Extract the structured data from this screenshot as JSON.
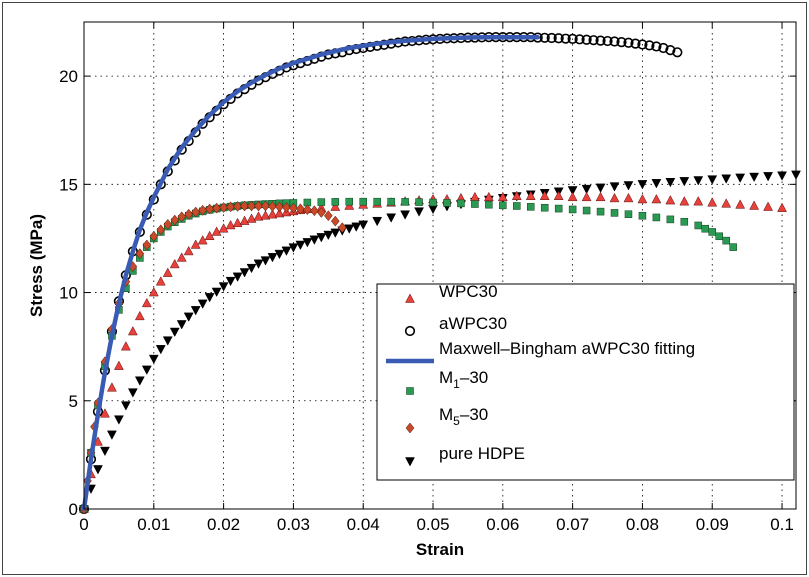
{
  "chart_data": {
    "type": "scatter",
    "xlabel": "Strain",
    "ylabel": "Stress (MPa)",
    "xlim": [
      0,
      0.102
    ],
    "ylim": [
      0,
      22.5
    ],
    "xticks": [
      0,
      0.01,
      0.02,
      0.03,
      0.04,
      0.05,
      0.06,
      0.07,
      0.08,
      0.09,
      0.1
    ],
    "xtick_labels": [
      "0",
      "0.01",
      "0.02",
      "0.03",
      "0.04",
      "0.05",
      "0.06",
      "0.07",
      "0.08",
      "0.09",
      "0.1"
    ],
    "yticks": [
      0,
      5,
      10,
      15,
      20
    ],
    "ytick_labels": [
      "0",
      "5",
      "10",
      "15",
      "20"
    ],
    "grid": true,
    "legend_position": "lower-right",
    "series": [
      {
        "name": "WPC30",
        "legend_main": "WPC30",
        "legend_sub": "",
        "legend_tail": "",
        "marker": "triangle-up",
        "color": "#e8403a",
        "kind": "markers",
        "x": [
          0,
          0.001,
          0.002,
          0.003,
          0.004,
          0.005,
          0.006,
          0.007,
          0.008,
          0.009,
          0.01,
          0.011,
          0.012,
          0.013,
          0.014,
          0.015,
          0.016,
          0.017,
          0.018,
          0.019,
          0.02,
          0.021,
          0.022,
          0.023,
          0.024,
          0.025,
          0.026,
          0.027,
          0.028,
          0.029,
          0.03,
          0.031,
          0.032,
          0.034,
          0.036,
          0.038,
          0.04,
          0.042,
          0.044,
          0.046,
          0.048,
          0.05,
          0.052,
          0.054,
          0.056,
          0.058,
          0.06,
          0.062,
          0.064,
          0.066,
          0.068,
          0.07,
          0.072,
          0.074,
          0.076,
          0.078,
          0.08,
          0.082,
          0.084,
          0.086,
          0.088,
          0.09,
          0.092,
          0.094,
          0.096,
          0.098,
          0.1
        ],
        "y": [
          0,
          1.6,
          3.1,
          4.4,
          5.6,
          6.6,
          7.5,
          8.2,
          8.9,
          9.5,
          10.0,
          10.5,
          10.9,
          11.3,
          11.6,
          11.9,
          12.2,
          12.4,
          12.6,
          12.8,
          12.95,
          13.1,
          13.2,
          13.3,
          13.4,
          13.5,
          13.55,
          13.6,
          13.65,
          13.7,
          13.75,
          13.8,
          13.85,
          13.9,
          13.95,
          14.0,
          14.05,
          14.1,
          14.15,
          14.2,
          14.25,
          14.3,
          14.3,
          14.35,
          14.4,
          14.4,
          14.4,
          14.45,
          14.45,
          14.45,
          14.45,
          14.4,
          14.4,
          14.4,
          14.35,
          14.35,
          14.3,
          14.3,
          14.25,
          14.2,
          14.2,
          14.15,
          14.1,
          14.05,
          14.0,
          13.95,
          13.9
        ]
      },
      {
        "name": "aWPC30",
        "legend_main": "aWPC30",
        "legend_sub": "",
        "legend_tail": "",
        "marker": "circle-open",
        "color": "#000000",
        "kind": "markers",
        "x": [
          0,
          0.001,
          0.002,
          0.003,
          0.004,
          0.005,
          0.006,
          0.007,
          0.008,
          0.009,
          0.01,
          0.011,
          0.012,
          0.013,
          0.014,
          0.015,
          0.016,
          0.017,
          0.018,
          0.019,
          0.02,
          0.021,
          0.022,
          0.023,
          0.024,
          0.025,
          0.026,
          0.027,
          0.028,
          0.029,
          0.03,
          0.031,
          0.032,
          0.033,
          0.034,
          0.035,
          0.036,
          0.037,
          0.038,
          0.039,
          0.04,
          0.041,
          0.042,
          0.043,
          0.044,
          0.045,
          0.046,
          0.047,
          0.048,
          0.049,
          0.05,
          0.051,
          0.052,
          0.053,
          0.054,
          0.055,
          0.056,
          0.057,
          0.058,
          0.059,
          0.06,
          0.061,
          0.062,
          0.063,
          0.064,
          0.065,
          0.066,
          0.067,
          0.068,
          0.069,
          0.07,
          0.071,
          0.072,
          0.073,
          0.074,
          0.075,
          0.076,
          0.077,
          0.078,
          0.079,
          0.08,
          0.081,
          0.082,
          0.083,
          0.084,
          0.085
        ],
        "y": [
          0,
          2.3,
          4.5,
          6.4,
          8.2,
          9.6,
          10.8,
          11.9,
          12.8,
          13.6,
          14.3,
          15.0,
          15.6,
          16.1,
          16.6,
          17.0,
          17.4,
          17.8,
          18.1,
          18.4,
          18.7,
          18.95,
          19.2,
          19.4,
          19.6,
          19.8,
          19.95,
          20.1,
          20.25,
          20.4,
          20.5,
          20.6,
          20.7,
          20.8,
          20.9,
          21.0,
          21.05,
          21.1,
          21.2,
          21.25,
          21.3,
          21.35,
          21.4,
          21.45,
          21.5,
          21.55,
          21.6,
          21.62,
          21.65,
          21.68,
          21.7,
          21.72,
          21.74,
          21.75,
          21.76,
          21.78,
          21.78,
          21.79,
          21.8,
          21.8,
          21.8,
          21.8,
          21.8,
          21.8,
          21.8,
          21.78,
          21.77,
          21.76,
          21.75,
          21.73,
          21.72,
          21.7,
          21.68,
          21.66,
          21.64,
          21.62,
          21.6,
          21.57,
          21.54,
          21.5,
          21.46,
          21.42,
          21.37,
          21.3,
          21.2,
          21.1
        ]
      },
      {
        "name": "Maxwell–Bingham aWPC30 fitting",
        "legend_main": "Maxwell–Bingham aWPC30 fitting",
        "legend_sub": "",
        "legend_tail": "",
        "marker": "line",
        "color": "#3a5bb3",
        "kind": "line",
        "x": [
          0.0,
          0.001,
          0.002,
          0.003,
          0.004,
          0.005,
          0.006,
          0.007,
          0.008,
          0.009,
          0.01,
          0.012,
          0.014,
          0.016,
          0.018,
          0.02,
          0.022,
          0.024,
          0.026,
          0.028,
          0.03,
          0.032,
          0.034,
          0.036,
          0.038,
          0.04,
          0.042,
          0.044,
          0.046,
          0.048,
          0.05,
          0.052,
          0.054,
          0.056,
          0.058,
          0.06,
          0.062,
          0.065
        ],
        "y": [
          0.0,
          2.3,
          4.4,
          6.3,
          8.0,
          9.5,
          10.8,
          11.9,
          12.9,
          13.7,
          14.4,
          15.7,
          16.7,
          17.5,
          18.2,
          18.8,
          19.3,
          19.7,
          20.05,
          20.35,
          20.6,
          20.8,
          21.0,
          21.15,
          21.3,
          21.4,
          21.5,
          21.57,
          21.63,
          21.68,
          21.72,
          21.75,
          21.77,
          21.79,
          21.8,
          21.8,
          21.8,
          21.8
        ]
      },
      {
        "name": "M1–30",
        "legend_main": "M",
        "legend_sub": "1",
        "legend_tail": "–30",
        "marker": "square",
        "color": "#2a9a52",
        "kind": "markers",
        "x": [
          0,
          0.001,
          0.002,
          0.003,
          0.004,
          0.005,
          0.006,
          0.007,
          0.008,
          0.009,
          0.01,
          0.011,
          0.012,
          0.013,
          0.014,
          0.015,
          0.016,
          0.017,
          0.018,
          0.019,
          0.02,
          0.021,
          0.022,
          0.023,
          0.024,
          0.025,
          0.026,
          0.027,
          0.028,
          0.029,
          0.03,
          0.032,
          0.034,
          0.036,
          0.038,
          0.04,
          0.042,
          0.044,
          0.046,
          0.048,
          0.05,
          0.052,
          0.054,
          0.056,
          0.058,
          0.06,
          0.062,
          0.064,
          0.066,
          0.068,
          0.07,
          0.072,
          0.074,
          0.076,
          0.078,
          0.08,
          0.082,
          0.084,
          0.086,
          0.088,
          0.089,
          0.09,
          0.091,
          0.092,
          0.093
        ],
        "y": [
          0,
          2.6,
          4.8,
          6.6,
          8.0,
          9.2,
          10.2,
          11.0,
          11.6,
          12.1,
          12.5,
          12.8,
          13.05,
          13.25,
          13.4,
          13.55,
          13.65,
          13.75,
          13.82,
          13.88,
          13.93,
          13.97,
          14.0,
          14.03,
          14.05,
          14.07,
          14.09,
          14.1,
          14.12,
          14.13,
          14.14,
          14.16,
          14.18,
          14.19,
          14.2,
          14.2,
          14.2,
          14.2,
          14.19,
          14.18,
          14.16,
          14.14,
          14.12,
          14.09,
          14.06,
          14.03,
          14.0,
          13.96,
          13.92,
          13.88,
          13.84,
          13.79,
          13.74,
          13.68,
          13.62,
          13.55,
          13.47,
          13.38,
          13.27,
          13.1,
          12.95,
          12.8,
          12.6,
          12.4,
          12.1
        ]
      },
      {
        "name": "M5–30",
        "legend_main": "M",
        "legend_sub": "5",
        "legend_tail": "–30",
        "marker": "diamond",
        "color": "#c84a2a",
        "kind": "markers",
        "x": [
          0,
          0.0005,
          0.001,
          0.0015,
          0.002,
          0.003,
          0.004,
          0.005,
          0.006,
          0.007,
          0.008,
          0.009,
          0.01,
          0.011,
          0.012,
          0.013,
          0.014,
          0.015,
          0.016,
          0.017,
          0.018,
          0.019,
          0.02,
          0.021,
          0.022,
          0.023,
          0.024,
          0.025,
          0.026,
          0.027,
          0.028,
          0.029,
          0.03,
          0.031,
          0.032,
          0.033,
          0.034,
          0.035,
          0.036,
          0.037
        ],
        "y": [
          0,
          1.3,
          2.6,
          3.8,
          4.9,
          6.8,
          8.3,
          9.5,
          10.5,
          11.2,
          11.8,
          12.2,
          12.6,
          12.9,
          13.15,
          13.35,
          13.5,
          13.62,
          13.72,
          13.8,
          13.86,
          13.9,
          13.93,
          13.96,
          13.98,
          14.0,
          14.0,
          14.0,
          14.0,
          13.98,
          13.96,
          13.93,
          13.9,
          13.87,
          13.83,
          13.78,
          13.7,
          13.55,
          13.3,
          13.0
        ]
      },
      {
        "name": "pure HDPE",
        "legend_main": "pure HDPE",
        "legend_sub": "",
        "legend_tail": "",
        "marker": "triangle-down",
        "color": "#000000",
        "kind": "markers",
        "x": [
          0,
          0.001,
          0.002,
          0.003,
          0.004,
          0.005,
          0.006,
          0.007,
          0.008,
          0.009,
          0.01,
          0.011,
          0.012,
          0.013,
          0.014,
          0.015,
          0.016,
          0.017,
          0.018,
          0.019,
          0.02,
          0.021,
          0.022,
          0.023,
          0.024,
          0.025,
          0.026,
          0.027,
          0.028,
          0.029,
          0.03,
          0.031,
          0.032,
          0.033,
          0.034,
          0.035,
          0.036,
          0.037,
          0.038,
          0.039,
          0.04,
          0.042,
          0.044,
          0.046,
          0.048,
          0.05,
          0.052,
          0.054,
          0.056,
          0.058,
          0.06,
          0.062,
          0.064,
          0.066,
          0.068,
          0.07,
          0.072,
          0.074,
          0.076,
          0.078,
          0.08,
          0.082,
          0.084,
          0.086,
          0.088,
          0.09,
          0.092,
          0.094,
          0.096,
          0.098,
          0.1,
          0.102
        ],
        "y": [
          0,
          0.95,
          1.85,
          2.7,
          3.45,
          4.15,
          4.8,
          5.4,
          5.95,
          6.45,
          6.95,
          7.4,
          7.8,
          8.2,
          8.55,
          8.9,
          9.2,
          9.5,
          9.8,
          10.05,
          10.3,
          10.55,
          10.75,
          10.95,
          11.15,
          11.35,
          11.5,
          11.65,
          11.8,
          11.95,
          12.1,
          12.22,
          12.34,
          12.46,
          12.57,
          12.68,
          12.78,
          12.88,
          12.97,
          13.06,
          13.15,
          13.32,
          13.48,
          13.62,
          13.76,
          13.88,
          14.0,
          14.1,
          14.2,
          14.3,
          14.38,
          14.46,
          14.54,
          14.61,
          14.68,
          14.74,
          14.8,
          14.86,
          14.92,
          14.97,
          15.02,
          15.07,
          15.12,
          15.16,
          15.2,
          15.24,
          15.28,
          15.32,
          15.36,
          15.39,
          15.42,
          15.46
        ]
      }
    ]
  }
}
